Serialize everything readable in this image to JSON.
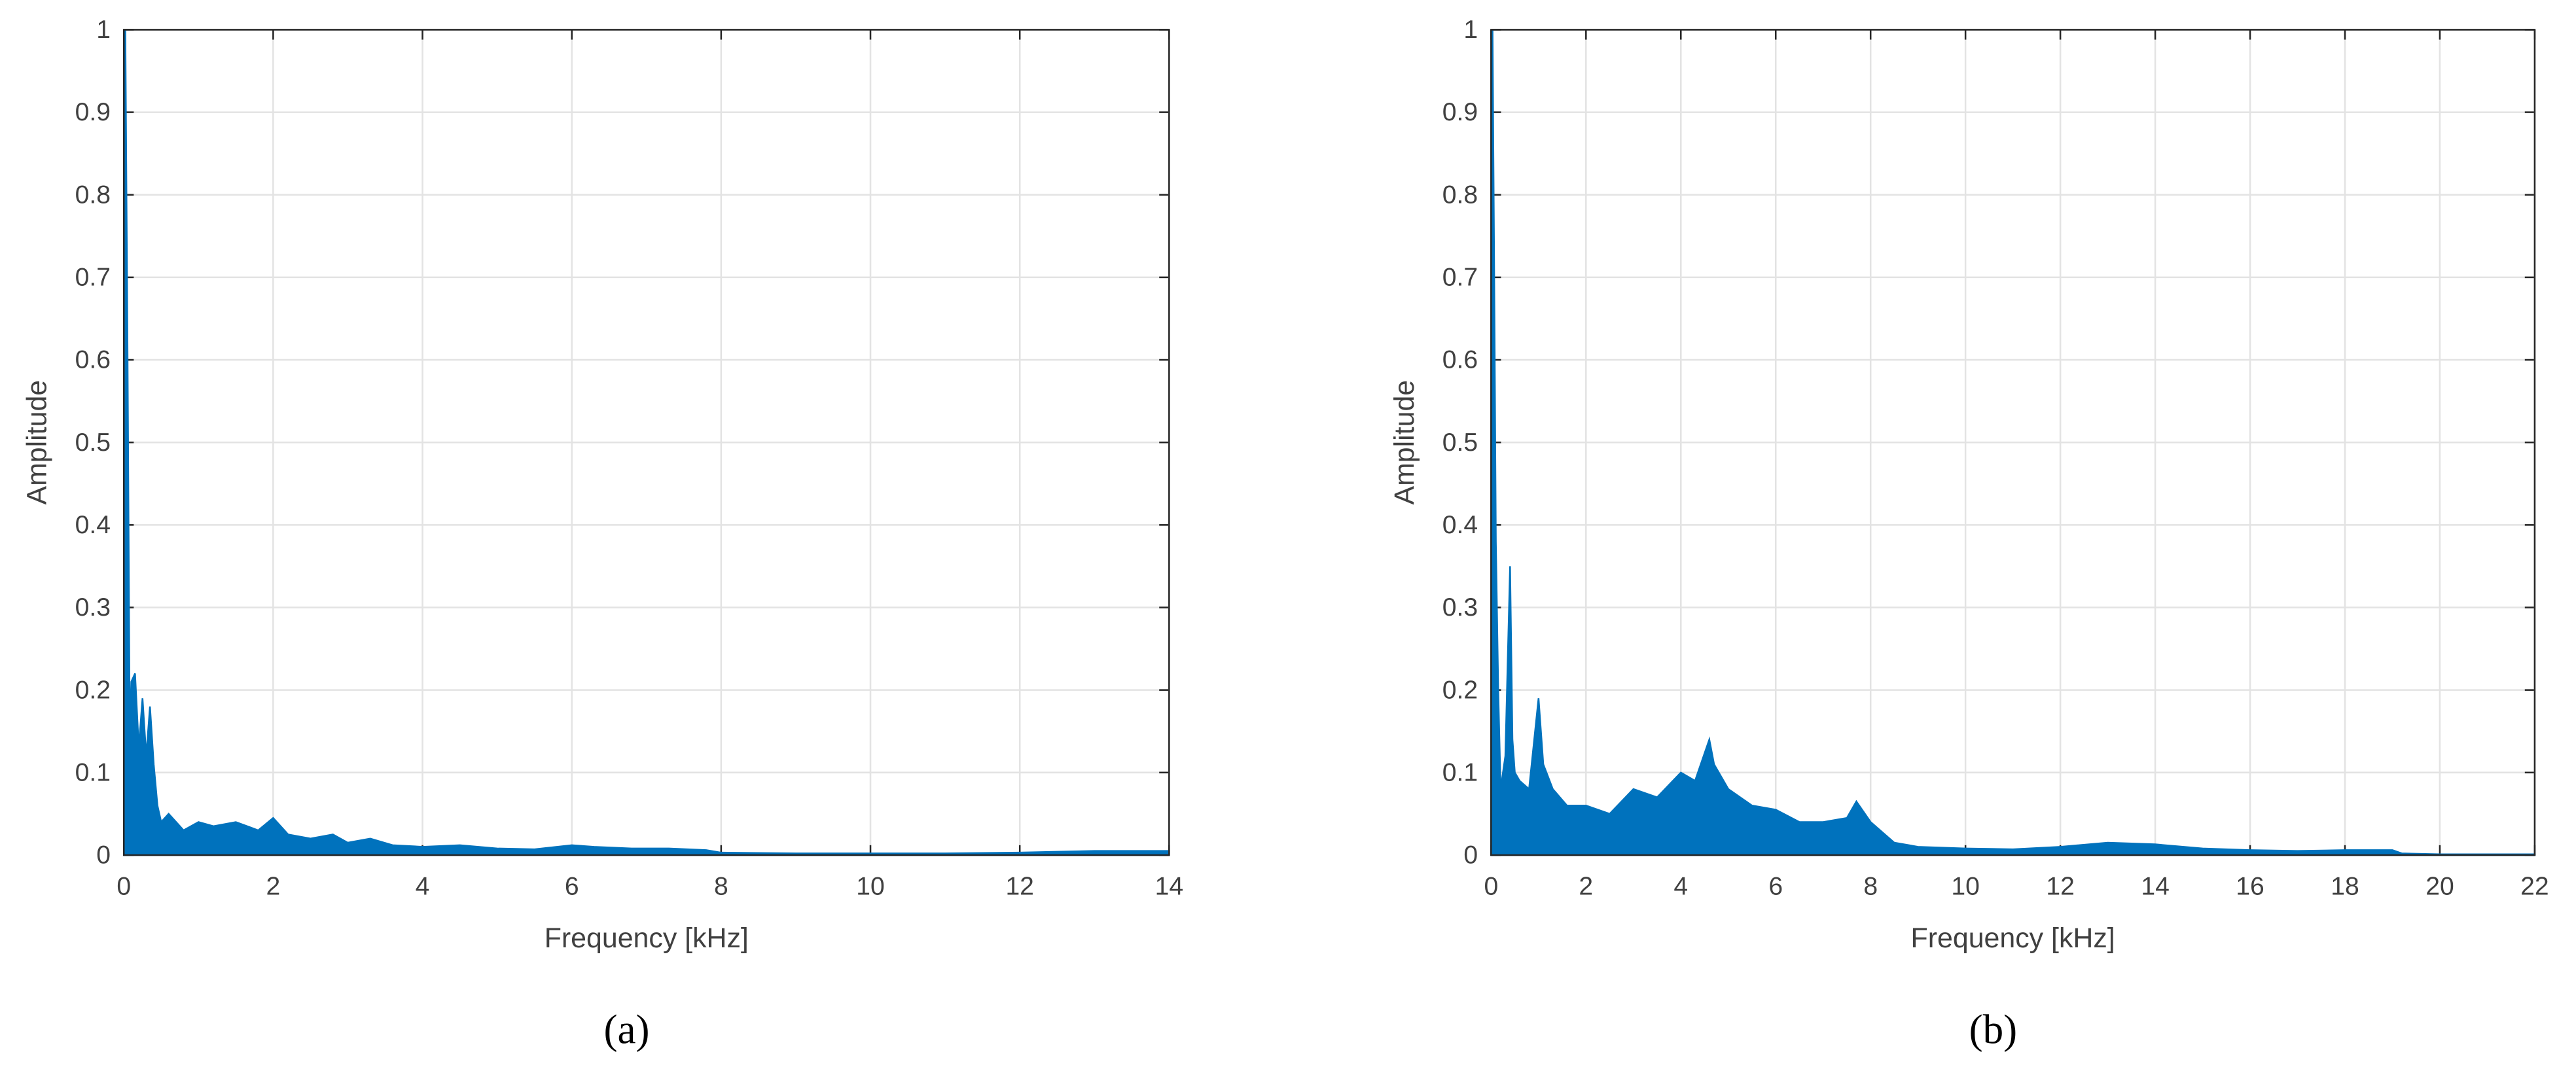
{
  "chart_data": [
    {
      "type": "area",
      "caption": "(a)",
      "xlabel": "Frequency [kHz]",
      "ylabel": "Amplitude",
      "xlim": [
        0,
        14
      ],
      "xticks": [
        0,
        2,
        4,
        6,
        8,
        10,
        12,
        14
      ],
      "ylim": [
        0,
        1
      ],
      "yticks": [
        0,
        0.1,
        0.2,
        0.3,
        0.4,
        0.5,
        0.6,
        0.7,
        0.8,
        0.9,
        1
      ],
      "grid": true,
      "series": [
        {
          "color": "#0072bd",
          "x": [
            0,
            0.02,
            0.05,
            0.08,
            0.1,
            0.15,
            0.2,
            0.25,
            0.3,
            0.35,
            0.4,
            0.45,
            0.5,
            0.6,
            0.8,
            1,
            1.2,
            1.5,
            1.8,
            2,
            2.2,
            2.5,
            2.8,
            3,
            3.3,
            3.6,
            4,
            4.5,
            5,
            5.5,
            6,
            6.3,
            6.8,
            7.3,
            7.8,
            8,
            9,
            10,
            11,
            12,
            12.5,
            13,
            14
          ],
          "values": [
            0,
            1.0,
            0.6,
            0.13,
            0.21,
            0.22,
            0.13,
            0.19,
            0.12,
            0.18,
            0.11,
            0.06,
            0.04,
            0.05,
            0.03,
            0.04,
            0.035,
            0.04,
            0.03,
            0.045,
            0.025,
            0.02,
            0.025,
            0.015,
            0.02,
            0.012,
            0.01,
            0.012,
            0.008,
            0.007,
            0.012,
            0.01,
            0.008,
            0.008,
            0.006,
            0.003,
            0.002,
            0.002,
            0.002,
            0.003,
            0.004,
            0.005,
            0.005
          ]
        }
      ]
    },
    {
      "type": "area",
      "caption": "(b)",
      "xlabel": "Frequency [kHz]",
      "ylabel": "Amplitude",
      "xlim": [
        0,
        22
      ],
      "xticks": [
        0,
        2,
        4,
        6,
        8,
        10,
        12,
        14,
        16,
        18,
        20,
        22
      ],
      "ylim": [
        0,
        1
      ],
      "yticks": [
        0,
        0.1,
        0.2,
        0.3,
        0.4,
        0.5,
        0.6,
        0.7,
        0.8,
        0.9,
        1
      ],
      "grid": true,
      "series": [
        {
          "color": "#0072bd",
          "x": [
            0,
            0.03,
            0.06,
            0.1,
            0.15,
            0.2,
            0.3,
            0.4,
            0.45,
            0.5,
            0.6,
            0.8,
            1,
            1.1,
            1.3,
            1.6,
            2,
            2.5,
            3,
            3.5,
            4,
            4.3,
            4.6,
            4.7,
            5,
            5.5,
            6,
            6.5,
            7,
            7.5,
            7.7,
            8,
            8.5,
            9,
            10,
            11,
            12,
            13,
            14,
            15,
            16,
            17,
            18,
            19,
            19.2,
            20,
            21,
            22
          ],
          "values": [
            0,
            1.0,
            0.75,
            0.38,
            0.2,
            0.08,
            0.12,
            0.35,
            0.14,
            0.1,
            0.09,
            0.08,
            0.19,
            0.11,
            0.08,
            0.06,
            0.06,
            0.05,
            0.08,
            0.07,
            0.1,
            0.09,
            0.14,
            0.11,
            0.08,
            0.06,
            0.055,
            0.04,
            0.04,
            0.045,
            0.065,
            0.04,
            0.015,
            0.01,
            0.008,
            0.007,
            0.01,
            0.015,
            0.013,
            0.008,
            0.006,
            0.005,
            0.006,
            0.006,
            0.002,
            0.001,
            0.001,
            0.001
          ]
        }
      ]
    }
  ]
}
